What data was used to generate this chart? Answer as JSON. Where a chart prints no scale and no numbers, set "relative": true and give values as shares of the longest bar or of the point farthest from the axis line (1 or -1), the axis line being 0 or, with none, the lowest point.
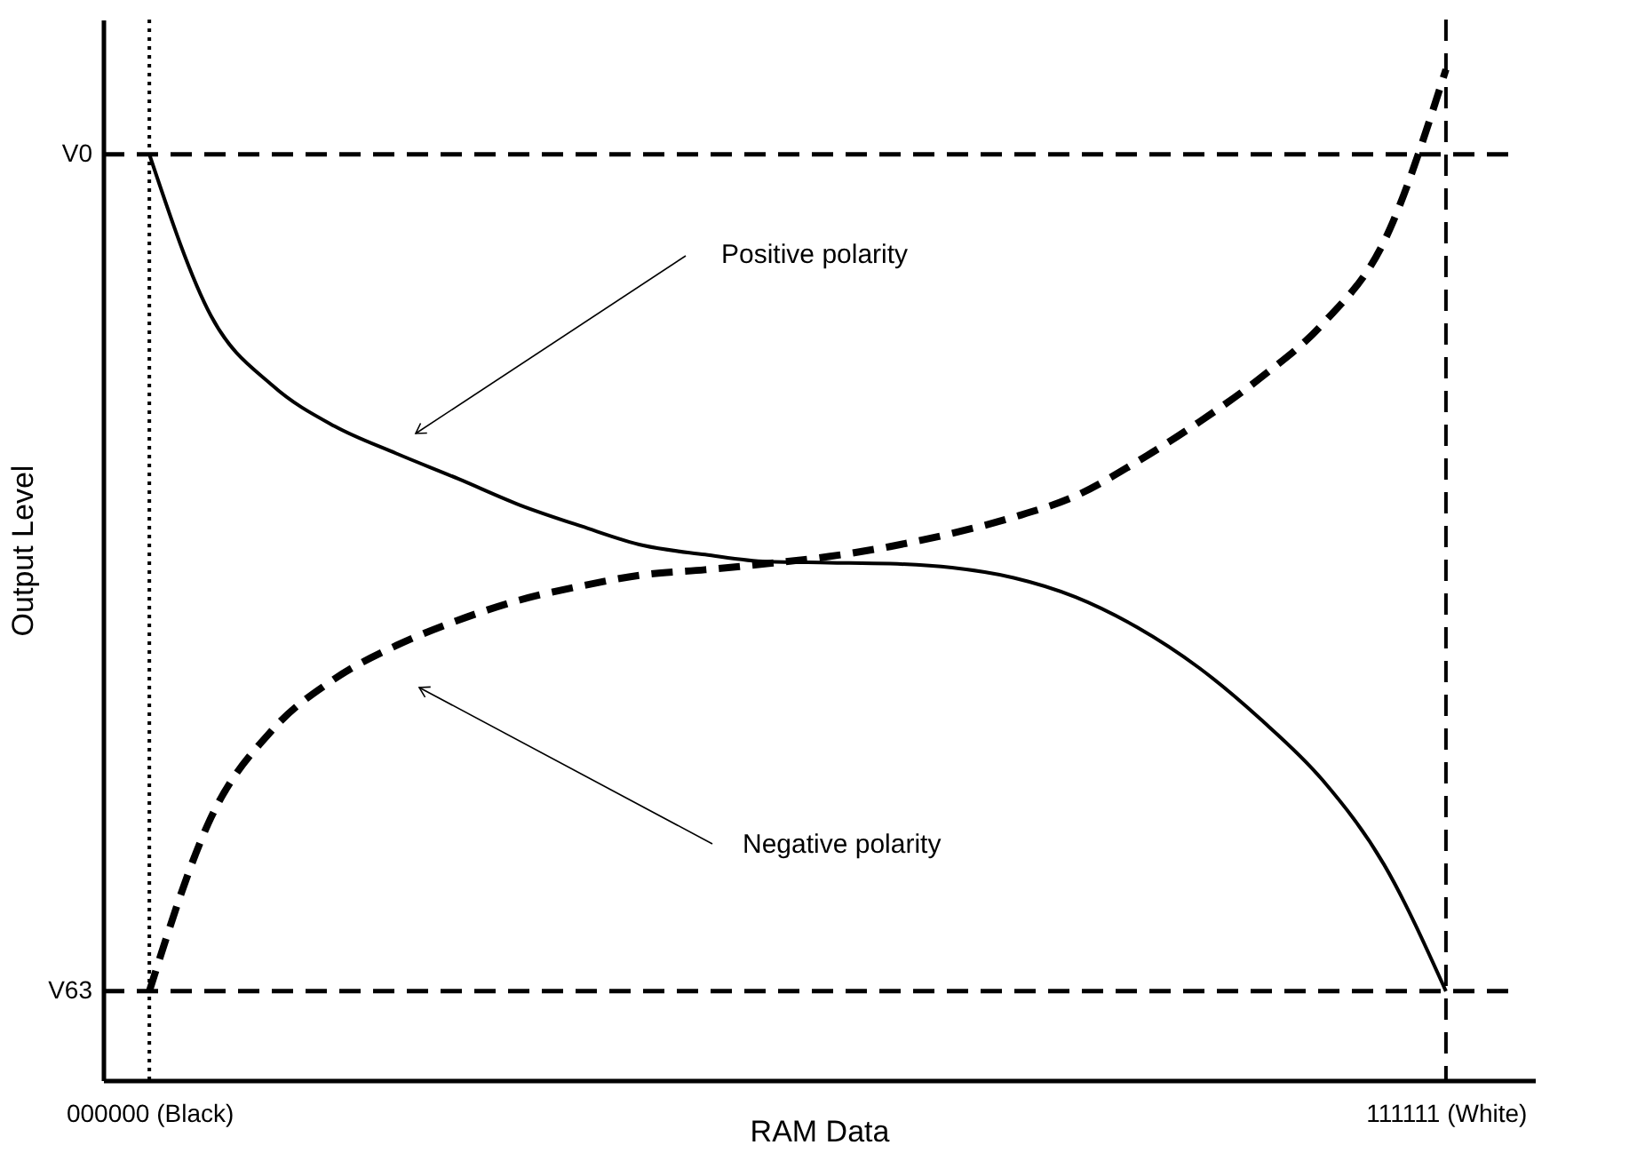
{
  "chart_data": {
    "type": "line",
    "relative": true,
    "xlabel": "RAM Data",
    "ylabel": "Output Level",
    "categories": [
      "000000 (Black)",
      null,
      null,
      null,
      null,
      null,
      null,
      null,
      null,
      null,
      null,
      null,
      null,
      null,
      null,
      null,
      null,
      null,
      null,
      null,
      null,
      "111111 (White)"
    ],
    "grid": false,
    "series": [
      {
        "color": "#000000",
        "line_style": "solid",
        "values": [
          0.916,
          0.756,
          0.687,
          0.647,
          0.62,
          0.595,
          0.569,
          0.548,
          0.529,
          0.52,
          0.513,
          0.512,
          0.511,
          0.507,
          0.497,
          0.478,
          0.448,
          0.408,
          0.357,
          0.297,
          0.213,
          0.088
        ]
      },
      {
        "color": "#000000",
        "line_style": "dashed",
        "values": [
          0.088,
          0.26,
          0.347,
          0.397,
          0.43,
          0.455,
          0.475,
          0.489,
          0.5,
          0.505,
          0.511,
          0.518,
          0.528,
          0.541,
          0.557,
          0.578,
          0.612,
          0.651,
          0.695,
          0.748,
          0.83,
          1.0
        ]
      }
    ],
    "ref_lines": [
      {
        "axis": "y",
        "value": 0.916,
        "label": "V0",
        "line_style": "dashed"
      },
      {
        "axis": "y",
        "value": 0.088,
        "label": "V63",
        "line_style": "dashed"
      },
      {
        "axis": "x",
        "value": "000000 (Black)",
        "line_style": "dotted"
      },
      {
        "axis": "x",
        "value": "111111 (White)",
        "line_style": "dashed"
      }
    ],
    "annotations": [
      "Positive polarity",
      "Negative polarity"
    ]
  }
}
